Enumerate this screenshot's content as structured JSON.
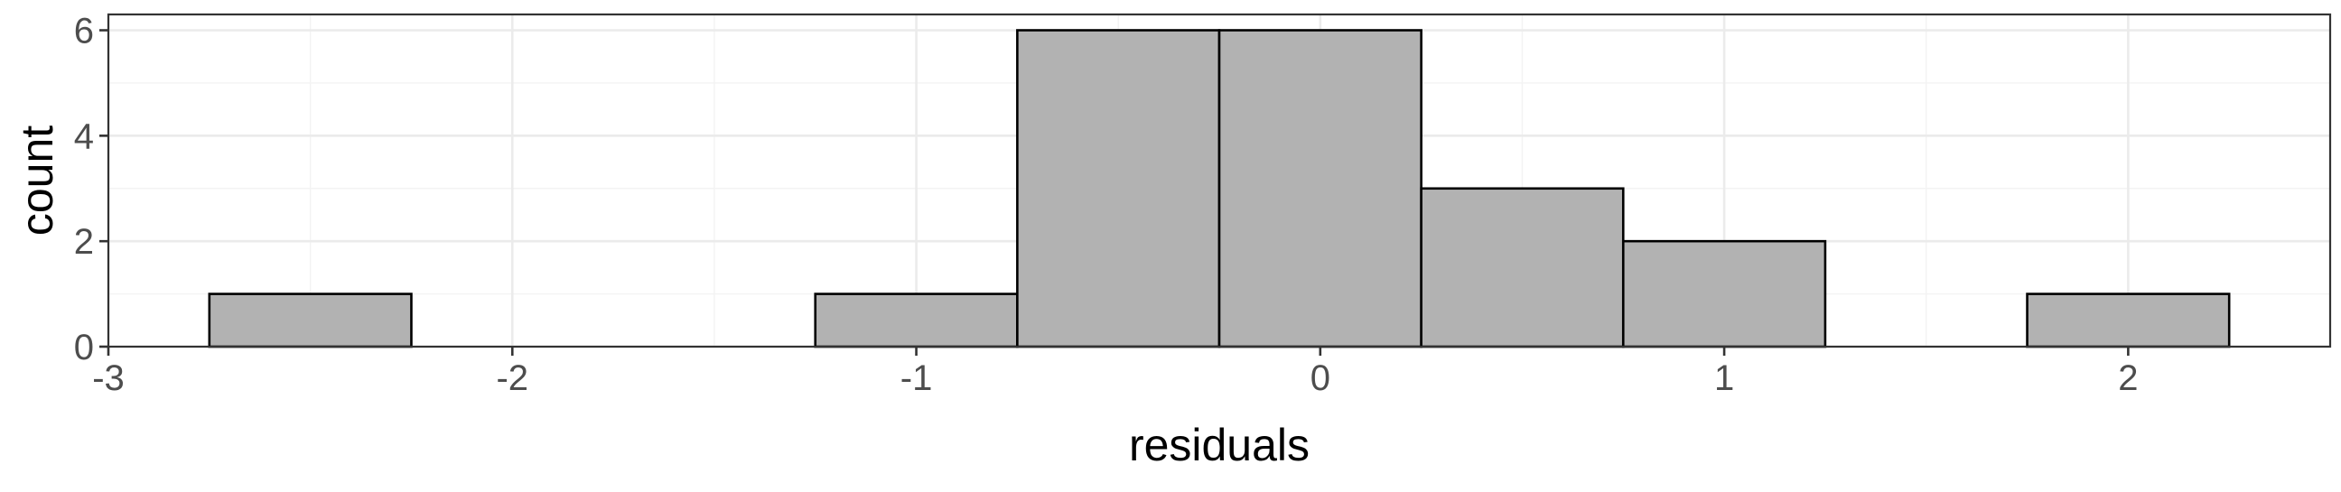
{
  "chart_data": {
    "type": "bar",
    "subtype": "histogram",
    "xlabel": "residuals",
    "ylabel": "count",
    "xlim": [
      -3,
      2.5
    ],
    "ylim": [
      0,
      6.3
    ],
    "xticks": [
      -3,
      -2,
      -1,
      0,
      1,
      2
    ],
    "xtick_labels": [
      "-3",
      "-2",
      "-1",
      "0",
      "1",
      "2"
    ],
    "yticks": [
      0,
      2,
      4,
      6
    ],
    "ytick_labels": [
      "0",
      "2",
      "4",
      "6"
    ],
    "bins": [
      {
        "x0": -2.75,
        "x1": -2.25,
        "count": 1
      },
      {
        "x0": -2.25,
        "x1": -1.75,
        "count": 0
      },
      {
        "x0": -1.75,
        "x1": -1.25,
        "count": 0
      },
      {
        "x0": -1.25,
        "x1": -0.75,
        "count": 1
      },
      {
        "x0": -0.75,
        "x1": -0.25,
        "count": 6
      },
      {
        "x0": -0.25,
        "x1": 0.25,
        "count": 6
      },
      {
        "x0": 0.25,
        "x1": 0.75,
        "count": 3
      },
      {
        "x0": 0.75,
        "x1": 1.25,
        "count": 2
      },
      {
        "x0": 1.25,
        "x1": 1.75,
        "count": 0
      },
      {
        "x0": 1.75,
        "x1": 2.25,
        "count": 1
      }
    ],
    "grid": true,
    "legend": "none",
    "theme": "bw",
    "bar_fill": "#b2b2b2",
    "bar_outline": "#000000",
    "grid_color": "#ebebeb",
    "border_color": "#333333"
  }
}
